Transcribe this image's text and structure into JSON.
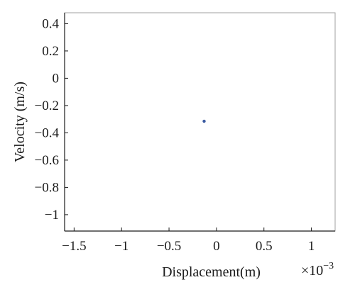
{
  "chart_data": {
    "type": "scatter",
    "title": "",
    "xlabel": "Displacement(m)",
    "ylabel": "Velocity (m/s)",
    "x_multiplier_label": "×10",
    "x_multiplier_exponent": "−3",
    "xlim": [
      -1.6,
      1.25
    ],
    "ylim": [
      -1.12,
      0.48
    ],
    "x_ticks": [
      -1.5,
      -1,
      -0.5,
      0,
      0.5,
      1
    ],
    "x_tick_labels": [
      "−1.5",
      "−1",
      "−0.5",
      "0",
      "0.5",
      "1"
    ],
    "y_ticks": [
      0.4,
      0.2,
      0,
      -0.2,
      -0.4,
      -0.6,
      -0.8,
      -1
    ],
    "y_tick_labels": [
      "0.4",
      "0.2",
      "0",
      "−0.2",
      "−0.4",
      "−0.6",
      "−0.8",
      "−1"
    ],
    "grid": false,
    "series": [
      {
        "points": [
          {
            "x": -0.13,
            "y": -0.315
          }
        ]
      }
    ],
    "colors": {
      "point": "#3a5aa0",
      "axis": "#1a1a1a",
      "frame": "#a0a0a0"
    }
  }
}
